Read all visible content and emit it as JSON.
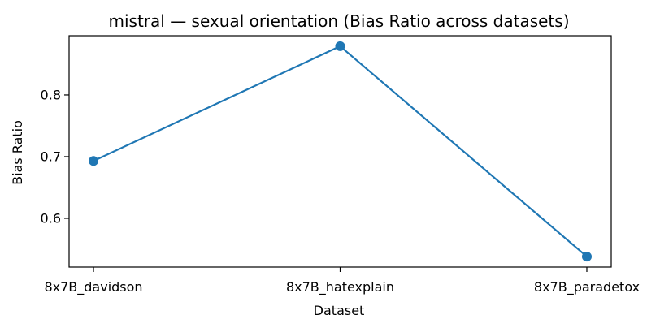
{
  "chart_data": {
    "type": "line",
    "title": "mistral — sexual orientation (Bias Ratio across datasets)",
    "xlabel": "Dataset",
    "ylabel": "Bias Ratio",
    "categories": [
      "8x7B_davidson",
      "8x7B_hatexplain",
      "8x7B_paradetox"
    ],
    "series": [
      {
        "values": [
          0.693,
          0.879,
          0.538
        ],
        "color": "#1f77b4",
        "marker": "circle"
      }
    ],
    "ylim": [
      0.521,
      0.896
    ],
    "yticks": [
      0.6,
      0.7,
      0.8
    ],
    "ytick_labels": [
      "0.6",
      "0.7",
      "0.8"
    ],
    "grid": false,
    "legend": "none"
  }
}
